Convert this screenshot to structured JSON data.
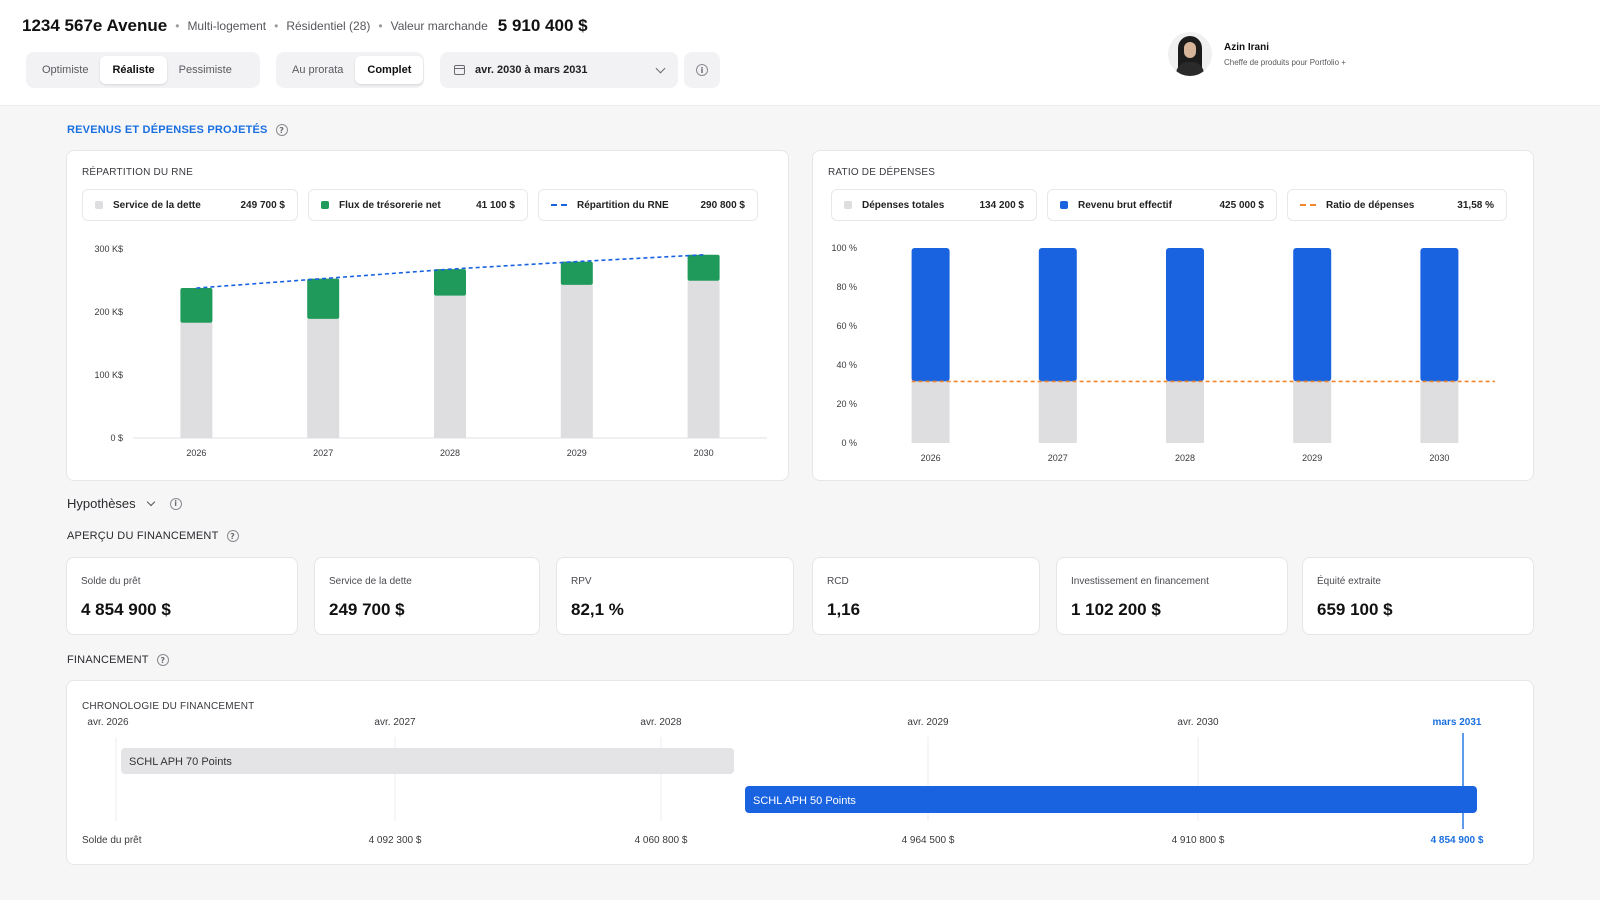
{
  "header": {
    "property_title": "1234 567e Avenue",
    "property_type": "Multi-logement",
    "category": "Résidentiel (28)",
    "market_value_label": "Valeur marchande",
    "market_value": "5 910 400 $"
  },
  "scenario_tabs": [
    "Optimiste",
    "Réaliste",
    "Pessimiste"
  ],
  "scenario_active": "Réaliste",
  "mode_tabs": [
    "Au prorata",
    "Complet"
  ],
  "mode_active": "Complet",
  "date_range": "avr. 2030 à mars 2031",
  "user": {
    "name": "Azin Irani",
    "role": "Cheffe de produits pour Portfolio +"
  },
  "section_revenus": "REVENUS ET DÉPENSES PROJETÉS",
  "hypotheses_label": "Hypothèses",
  "section_apercu": "APERÇU DU FINANCEMENT",
  "section_financement": "FINANCEMENT",
  "kpis": [
    {
      "label": "Solde du prêt",
      "value": "4 854 900 $"
    },
    {
      "label": "Service de la dette",
      "value": "249 700 $"
    },
    {
      "label": "RPV",
      "value": "82,1 %"
    },
    {
      "label": "RCD",
      "value": "1,16"
    },
    {
      "label": "Investissement en financement",
      "value": "1 102 200 $"
    },
    {
      "label": "Équité extraite",
      "value": "659 100 $"
    }
  ],
  "timeline": {
    "title": "CHRONOLOGIE DU FINANCEMENT",
    "dates": [
      "avr. 2026",
      "avr. 2027",
      "avr. 2028",
      "avr. 2029",
      "avr. 2030",
      "mars 2031"
    ],
    "row_label": "Solde du prêt",
    "balances": [
      "4 092 300 $",
      "4 060 800 $",
      "4 964 500 $",
      "4 910 800 $",
      "4 854 900 $"
    ],
    "bars": [
      {
        "label": "SCHL APH 70 Points",
        "color": "#e4e4e6",
        "text_color": "#333333"
      },
      {
        "label": "SCHL APH 50 Points",
        "color": "#1a63e0",
        "text_color": "#ffffff"
      }
    ],
    "highlight_color": "#1a6fe0"
  },
  "colors": {
    "green": "#1f9a5b",
    "gray": "#dedee0",
    "blue": "#1a63e0",
    "orange": "#f0862b",
    "accent": "#1a6fe0"
  },
  "chart_data": [
    {
      "type": "bar",
      "title": "RÉPARTITION DU RNE",
      "categories": [
        "2026",
        "2027",
        "2028",
        "2029",
        "2030"
      ],
      "series": [
        {
          "name": "Service de la dette",
          "values": [
            183,
            189,
            226,
            243,
            249.7
          ],
          "color": "#dedee0",
          "legend_value": "249 700 $"
        },
        {
          "name": "Flux de trésorerie net",
          "values": [
            55,
            64,
            42,
            37,
            41.1
          ],
          "color": "#1f9a5b",
          "legend_value": "41 100 $"
        },
        {
          "name": "Répartition du RNE",
          "type": "line",
          "values": [
            238,
            253,
            268,
            280,
            290.8
          ],
          "color": "#1a63e0",
          "legend_value": "290 800 $"
        }
      ],
      "yticks": [
        "0 $",
        "100 K$",
        "200 K$",
        "300 K$"
      ],
      "ylim": [
        0,
        300
      ]
    },
    {
      "type": "bar",
      "title": "RATIO DE DÉPENSES",
      "categories": [
        "2026",
        "2027",
        "2028",
        "2029",
        "2030"
      ],
      "series": [
        {
          "name": "Dépenses totales",
          "values": [
            31.58,
            31.58,
            31.58,
            31.58,
            31.58
          ],
          "color": "#dedee0",
          "legend_value": "134 200 $"
        },
        {
          "name": "Revenu brut effectif",
          "values": [
            100,
            100,
            100,
            100,
            100
          ],
          "color": "#1a63e0",
          "legend_value": "425 000 $"
        },
        {
          "name": "Ratio de dépenses",
          "type": "line",
          "values": [
            31.58,
            31.58,
            31.58,
            31.58,
            31.58
          ],
          "color": "#f0862b",
          "legend_value": "31,58 %"
        }
      ],
      "yticks": [
        "0 %",
        "20 %",
        "40 %",
        "60 %",
        "80 %",
        "100 %"
      ],
      "ylim": [
        0,
        100
      ]
    }
  ]
}
